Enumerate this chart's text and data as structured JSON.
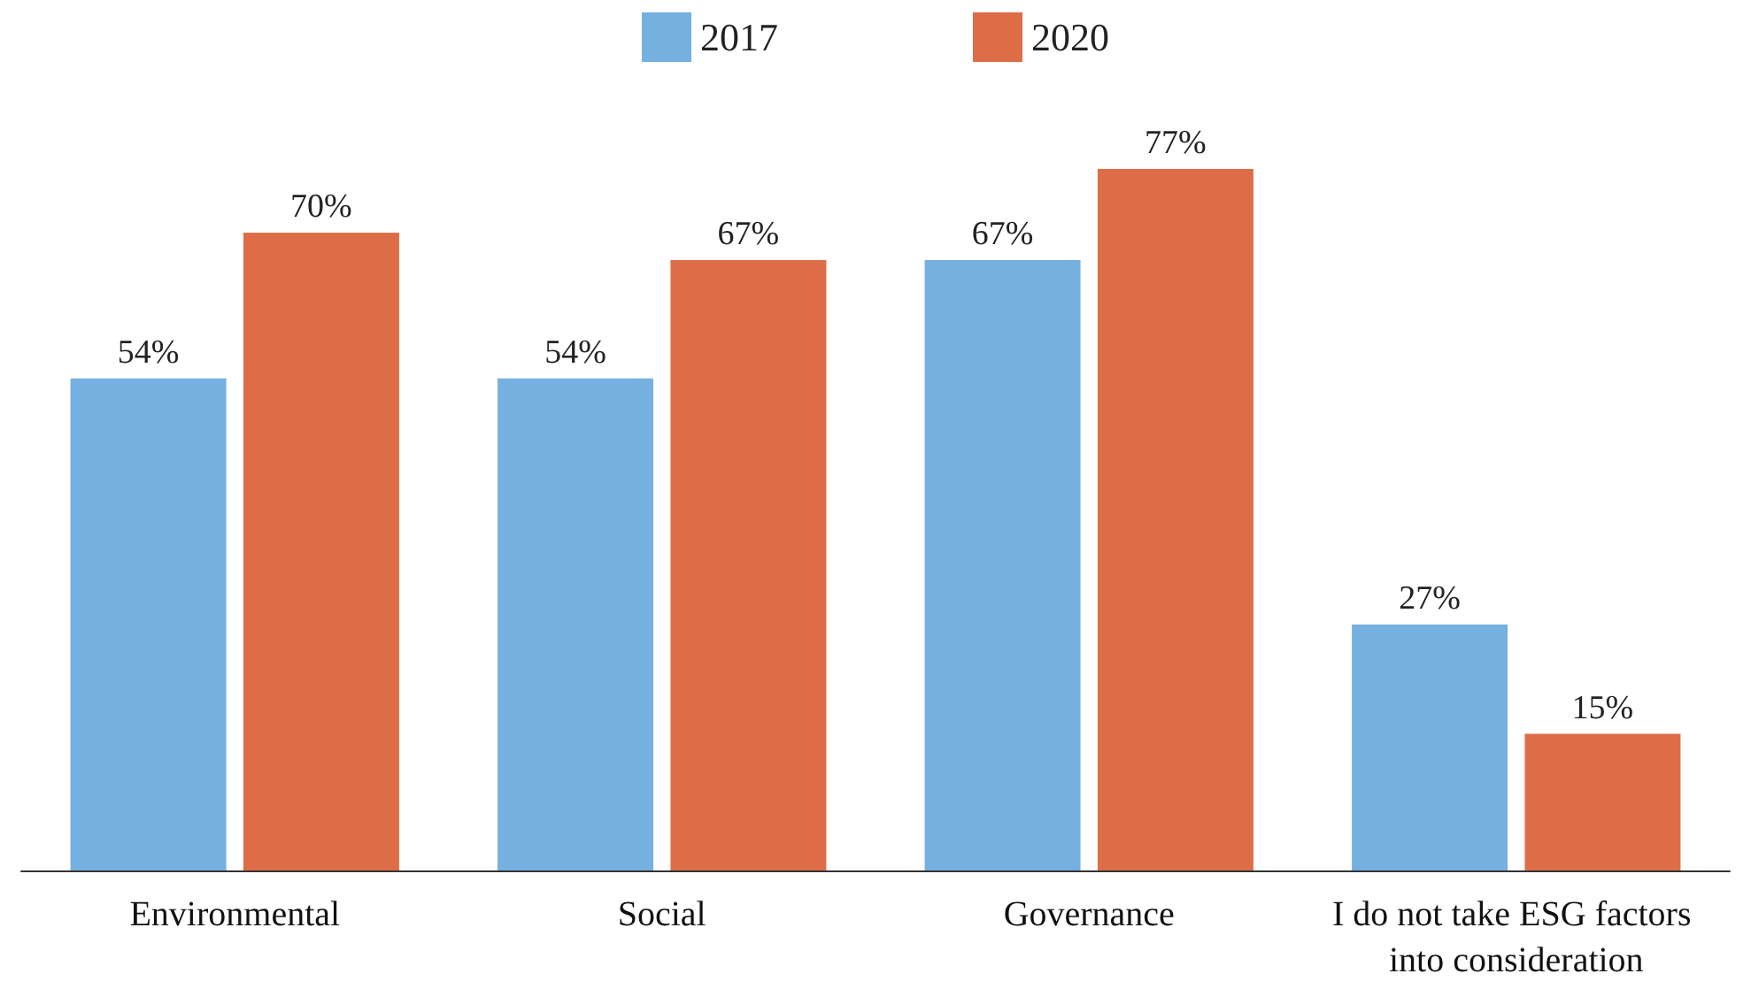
{
  "chart_data": {
    "type": "bar",
    "categories": [
      "Environmental",
      "Social",
      "Governance",
      "I do not take ESG factors into consideration"
    ],
    "series": [
      {
        "name": "2017",
        "color": "#75b0e0",
        "values": [
          54,
          54,
          67,
          27
        ],
        "value_labels": [
          "54%",
          "54%",
          "67%",
          "27%"
        ]
      },
      {
        "name": "2020",
        "color": "#dd6d47",
        "values": [
          70,
          67,
          77,
          15
        ],
        "value_labels": [
          "70%",
          "67%",
          "77%",
          "15%"
        ]
      }
    ],
    "legend": "top",
    "tick_labels": "x"
  }
}
